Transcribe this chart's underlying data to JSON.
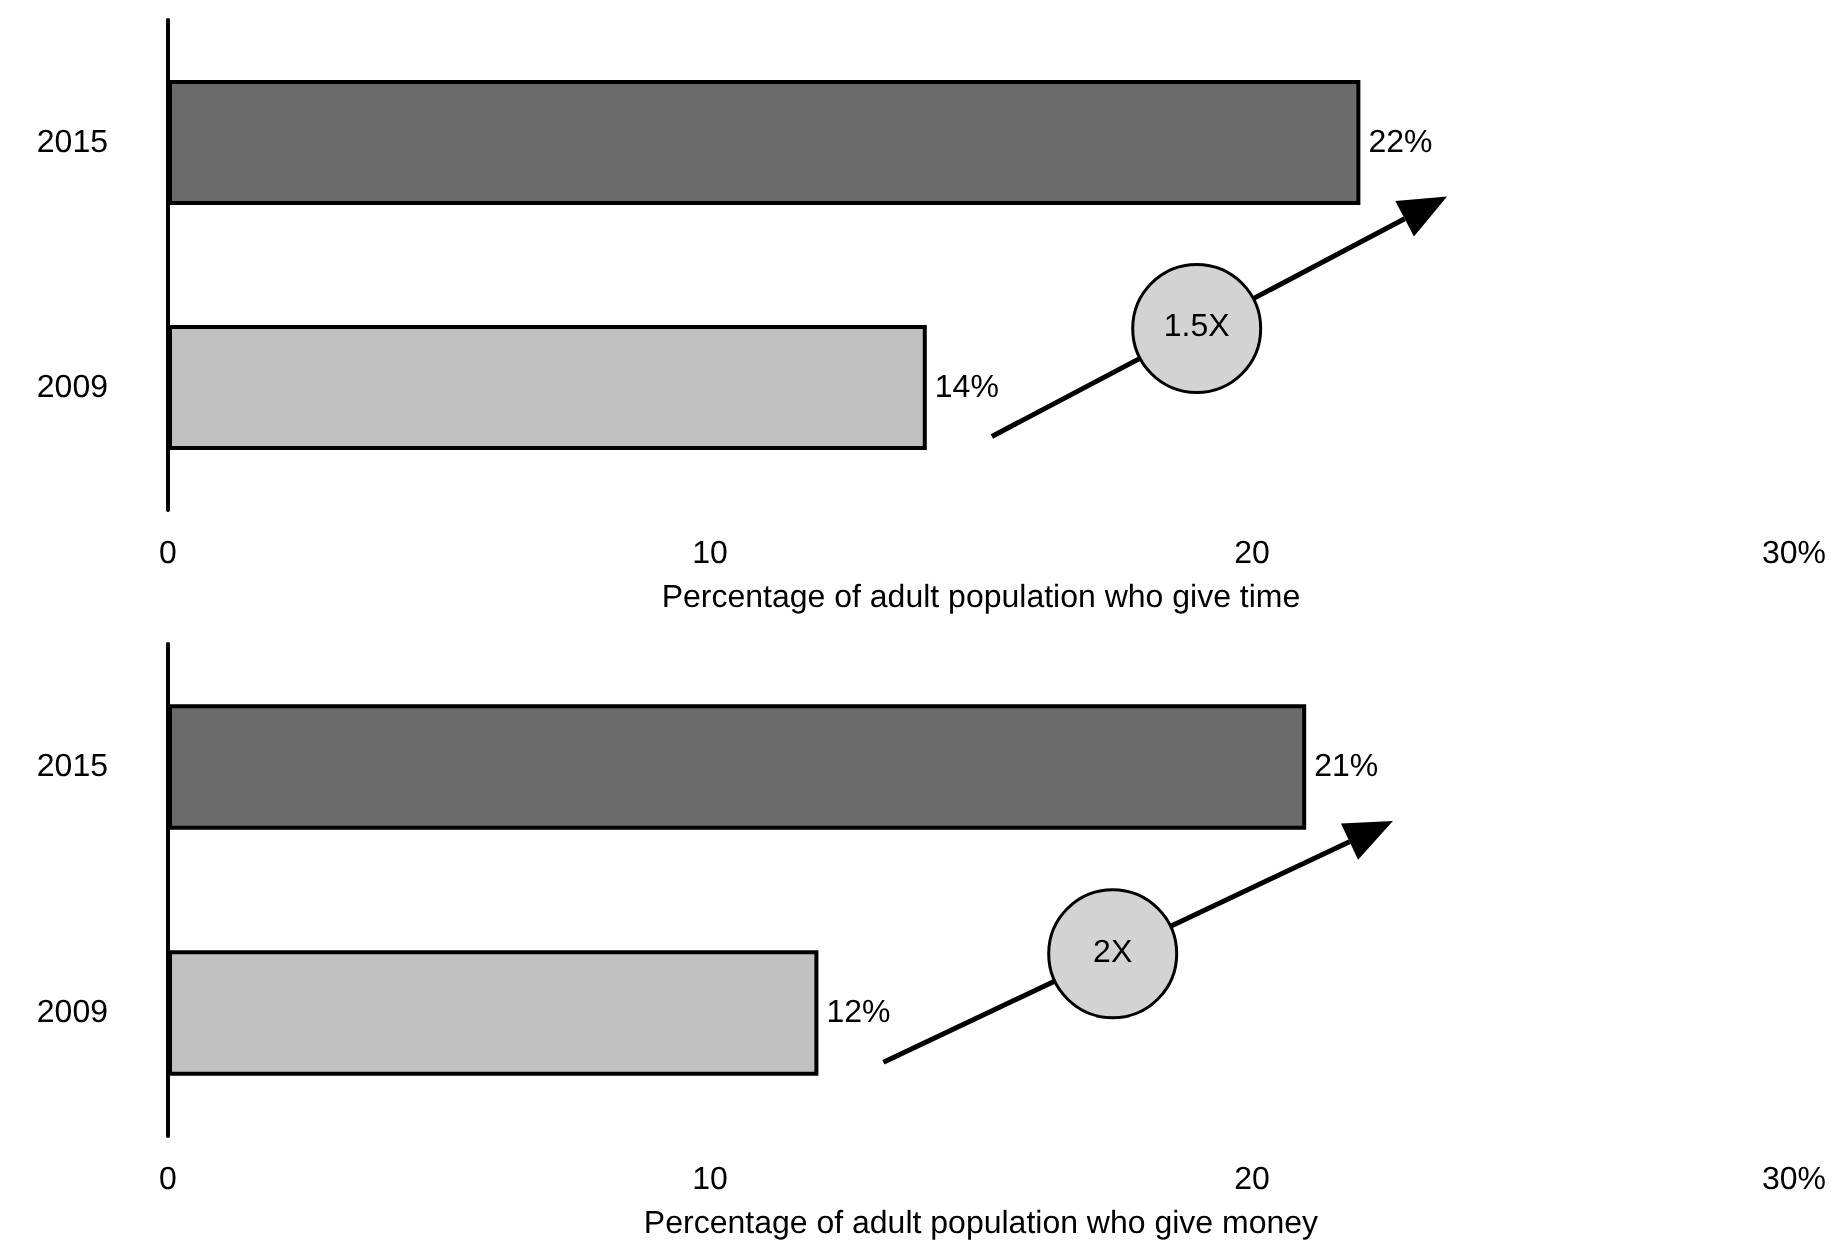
{
  "chart_data": [
    {
      "type": "bar",
      "orientation": "horizontal",
      "categories": [
        "2015",
        "2009"
      ],
      "values": [
        22,
        14
      ],
      "colors": [
        "#6b6b6b",
        "#c0c0c0"
      ],
      "value_labels": [
        "22%",
        "14%"
      ],
      "xlim": [
        0,
        30
      ],
      "xticks": [
        0,
        10,
        20,
        {
          "value": 30,
          "label": "30%"
        }
      ],
      "xlabel": "Percentage of adult population who give time",
      "annotations": [
        "1.5X"
      ]
    },
    {
      "type": "bar",
      "orientation": "horizontal",
      "categories": [
        "2015",
        "2009"
      ],
      "values": [
        21,
        12
      ],
      "colors": [
        "#6b6b6b",
        "#c0c0c0"
      ],
      "value_labels": [
        "21%",
        "12%"
      ],
      "xlim": [
        0,
        30
      ],
      "xticks": [
        0,
        10,
        20,
        {
          "value": 30,
          "label": "30%"
        }
      ],
      "xlabel": "Percentage of adult population who give money",
      "annotations": [
        "2X"
      ]
    }
  ]
}
